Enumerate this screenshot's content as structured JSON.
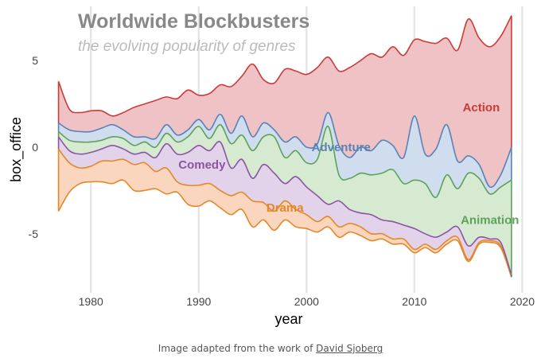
{
  "chart_data": {
    "type": "area",
    "title": "Worldwide Blockbusters",
    "subtitle": "the evolving popularity of genres",
    "xlabel": "year",
    "ylabel": "box_office",
    "xlim": [
      1976,
      2021
    ],
    "ylim": [
      -8.5,
      8.5
    ],
    "x_ticks": [
      1980,
      1990,
      2000,
      2010,
      2020
    ],
    "y_ticks": [
      -5,
      0,
      5
    ],
    "grid": "vertical",
    "legend": "inline labels",
    "x": [
      1977,
      1978,
      1979,
      1980,
      1981,
      1982,
      1983,
      1984,
      1985,
      1986,
      1987,
      1988,
      1989,
      1990,
      1991,
      1992,
      1993,
      1994,
      1995,
      1996,
      1997,
      1998,
      1999,
      2000,
      2001,
      2002,
      2003,
      2004,
      2005,
      2006,
      2007,
      2008,
      2009,
      2010,
      2011,
      2012,
      2013,
      2014,
      2015,
      2016,
      2017,
      2018,
      2019
    ],
    "boundaries": [
      {
        "name": "Drama lower",
        "values": [
          -3.7,
          -2.6,
          -2.1,
          -2.0,
          -2.0,
          -2.1,
          -1.9,
          -2.5,
          -2.5,
          -2.4,
          -2.7,
          -2.6,
          -3.3,
          -3.4,
          -3.1,
          -3.5,
          -3.9,
          -3.6,
          -4.6,
          -4.2,
          -4.8,
          -4.2,
          -4.6,
          -4.7,
          -4.9,
          -4.6,
          -5.2,
          -4.9,
          -5.1,
          -5.4,
          -5.3,
          -5.6,
          -5.6,
          -6.1,
          -5.8,
          -6.1,
          -5.6,
          -5.4,
          -6.6,
          -5.6,
          -5.5,
          -5.8,
          -7.5
        ]
      },
      {
        "name": "Drama / Comedy",
        "values": [
          -0.1,
          -0.9,
          -1.2,
          -1.1,
          -0.8,
          -0.8,
          -0.7,
          -1.0,
          -0.9,
          -1.4,
          -1.2,
          -2.0,
          -2.2,
          -2.2,
          -2.1,
          -2.5,
          -2.8,
          -2.6,
          -3.1,
          -3.2,
          -3.7,
          -3.1,
          -3.6,
          -3.9,
          -4.3,
          -4.0,
          -4.6,
          -4.4,
          -4.6,
          -5.0,
          -5.0,
          -5.3,
          -5.3,
          -5.9,
          -5.6,
          -5.9,
          -5.4,
          -5.2,
          -6.5,
          -5.5,
          -5.4,
          -5.7,
          -7.5
        ]
      },
      {
        "name": "Comedy / Animation",
        "values": [
          0.6,
          -0.2,
          -0.4,
          -0.3,
          -0.1,
          0.1,
          -0.1,
          -0.4,
          -0.3,
          -0.6,
          0.2,
          -0.4,
          -0.3,
          0.1,
          -0.2,
          0.3,
          -1.2,
          -0.7,
          -1.8,
          -1.0,
          -1.5,
          -2.1,
          -1.7,
          -2.3,
          -2.8,
          -3.3,
          -3.1,
          -3.6,
          -3.8,
          -3.9,
          -4.2,
          -4.3,
          -4.5,
          -4.7,
          -5.0,
          -5.2,
          -4.9,
          -4.6,
          -5.7,
          -5.2,
          -5.3,
          -5.5,
          -7.4
        ]
      },
      {
        "name": "Animation / Adventure",
        "values": [
          0.9,
          0.4,
          0.3,
          0.3,
          0.4,
          0.6,
          0.5,
          0.1,
          0.3,
          0.0,
          0.8,
          0.3,
          0.6,
          1.2,
          0.5,
          1.3,
          0.2,
          0.7,
          -0.2,
          0.6,
          0.6,
          -0.6,
          -0.2,
          -0.9,
          -0.7,
          1.2,
          -1.6,
          -1.8,
          -1.5,
          -1.6,
          -1.5,
          -1.3,
          -2.1,
          -1.9,
          -2.1,
          -2.9,
          -1.6,
          -2.4,
          -1.5,
          -1.8,
          -2.7,
          -2.3,
          -1.9
        ]
      },
      {
        "name": "Adventure / Action",
        "values": [
          1.4,
          1.0,
          0.9,
          0.9,
          1.1,
          1.3,
          1.0,
          0.6,
          0.6,
          0.5,
          1.3,
          0.7,
          1.0,
          1.6,
          1.0,
          1.9,
          0.8,
          1.8,
          0.6,
          1.4,
          1.0,
          0.3,
          0.6,
          0.0,
          0.2,
          2.0,
          0.1,
          -0.6,
          0.0,
          -0.2,
          0.4,
          0.1,
          -0.6,
          1.8,
          -0.4,
          -0.1,
          1.3,
          -0.8,
          -0.5,
          -1.0,
          -2.3,
          -1.6,
          0.0
        ]
      },
      {
        "name": "Action upper",
        "values": [
          3.8,
          2.2,
          2.0,
          2.1,
          2.1,
          1.8,
          2.0,
          2.3,
          2.5,
          2.7,
          2.9,
          2.8,
          3.3,
          3.0,
          3.1,
          3.6,
          3.5,
          4.1,
          4.8,
          3.9,
          3.7,
          4.5,
          4.4,
          4.2,
          4.6,
          5.2,
          4.4,
          4.6,
          5.0,
          5.4,
          5.2,
          5.8,
          5.3,
          6.2,
          6.1,
          6.0,
          6.3,
          5.6,
          7.4,
          6.3,
          5.8,
          6.4,
          7.6
        ]
      }
    ],
    "series": [
      {
        "name": "Action",
        "color": "#cc3b36",
        "fill": "#efc3c5",
        "lower": 4,
        "upper": 5
      },
      {
        "name": "Adventure",
        "color": "#5a82b7",
        "fill": "#cfddef",
        "lower": 3,
        "upper": 4
      },
      {
        "name": "Animation",
        "color": "#5ea25a",
        "fill": "#d6ead1",
        "lower": 2,
        "upper": 3
      },
      {
        "name": "Comedy",
        "color": "#8b55a2",
        "fill": "#e2d3ea",
        "lower": 1,
        "upper": 2
      },
      {
        "name": "Drama",
        "color": "#e5872b",
        "fill": "#f9d6bd",
        "lower": 0,
        "upper": 1
      }
    ],
    "labels": [
      {
        "series": "Action",
        "x": 2016.2,
        "y": 2.3
      },
      {
        "series": "Adventure",
        "x": 2003.2,
        "y": 0.0
      },
      {
        "series": "Animation",
        "x": 2017.0,
        "y": -4.2
      },
      {
        "series": "Comedy",
        "x": 1990.3,
        "y": -1.0
      },
      {
        "series": "Drama",
        "x": 1998.0,
        "y": -3.5
      }
    ]
  },
  "caption": {
    "prefix": "Image adapted from the work of ",
    "link": "David Sjoberg"
  }
}
